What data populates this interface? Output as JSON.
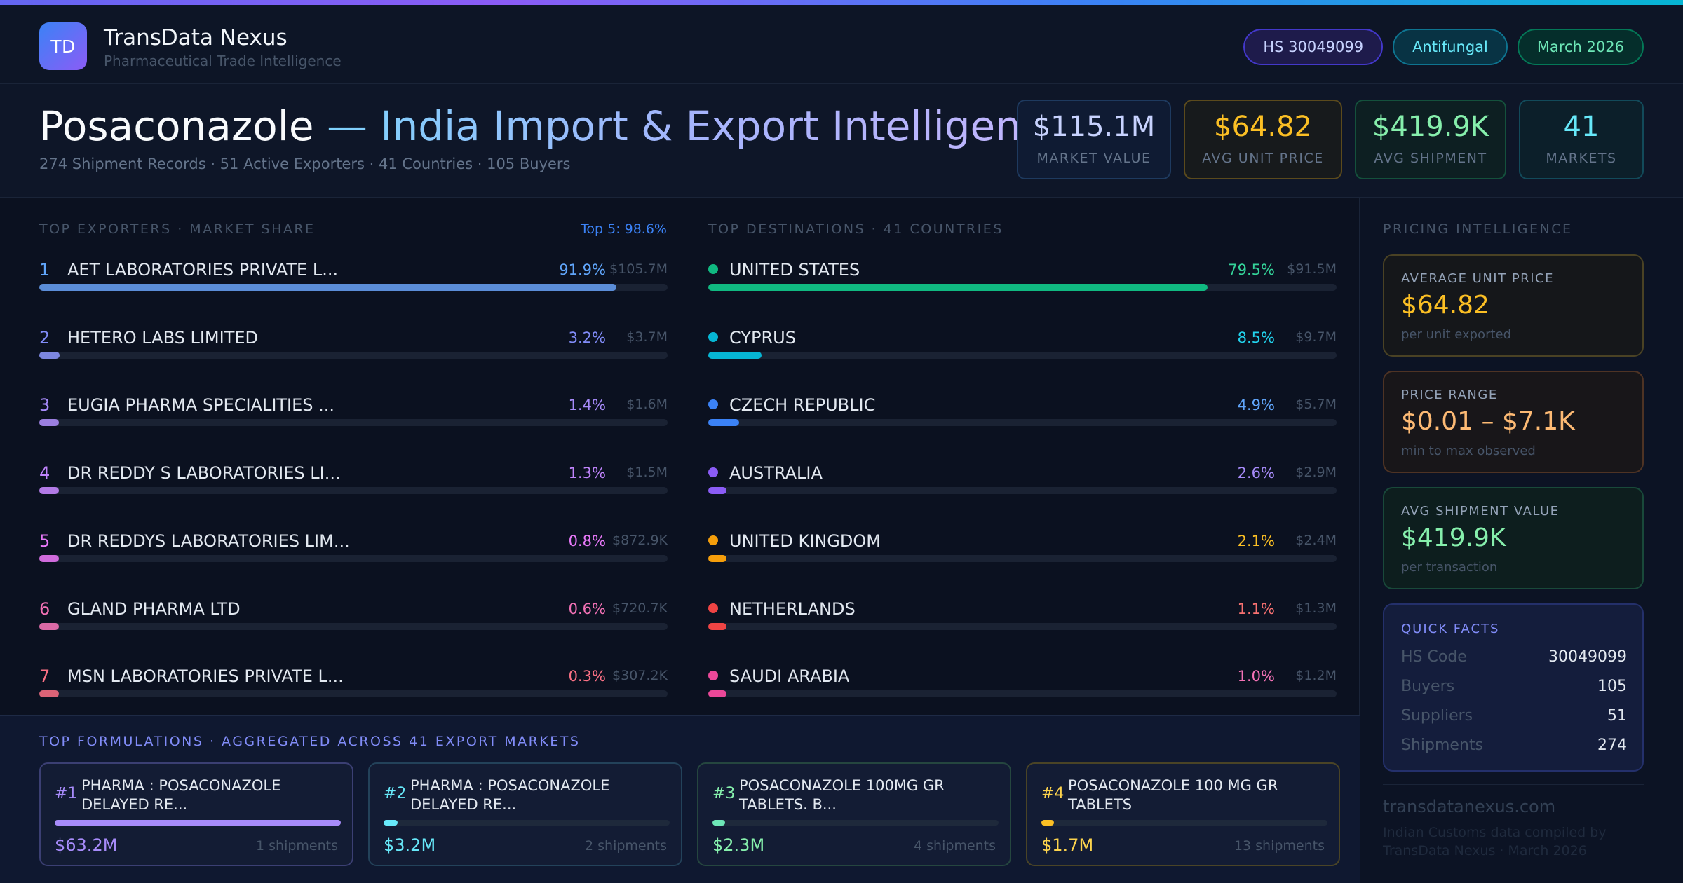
{
  "brand": {
    "logo_text": "TD",
    "name": "TransData Nexus",
    "subtitle": "Pharmaceutical Trade Intelligence"
  },
  "tags": {
    "hs": "HS 30049099",
    "category": "Antifungal",
    "period": "March 2026"
  },
  "hero": {
    "product": "Posaconazole",
    "title_rest": " — India Import & Export Intelligence",
    "subtitle": "274 Shipment Records · 51 Active Exporters · 41 Countries · 105 Buyers"
  },
  "kpis": [
    {
      "value": "$115.1M",
      "label": "MARKET VALUE"
    },
    {
      "value": "$64.82",
      "label": "AVG UNIT PRICE"
    },
    {
      "value": "$419.9K",
      "label": "AVG SHIPMENT"
    },
    {
      "value": "41",
      "label": "MARKETS"
    }
  ],
  "exporters": {
    "title": "TOP EXPORTERS · MARKET SHARE",
    "top5_label": "Top 5: 98.6%",
    "items": [
      {
        "rank": "1",
        "name": "AET LABORATORIES PRIVATE L...",
        "pct": "91.9%",
        "value": "$105.7M",
        "share": 91.9,
        "color": "#60a5fa",
        "fill": "#5b8dd8"
      },
      {
        "rank": "2",
        "name": "HETERO LABS LIMITED",
        "pct": "3.2%",
        "value": "$3.7M",
        "share": 3.2,
        "color": "#818cf8",
        "fill": "#7c86e0"
      },
      {
        "rank": "3",
        "name": "EUGIA PHARMA SPECIALITIES ...",
        "pct": "1.4%",
        "value": "$1.6M",
        "share": 1.4,
        "color": "#a78bfa",
        "fill": "#9b7fe0"
      },
      {
        "rank": "4",
        "name": "DR REDDY S LABORATORIES LI...",
        "pct": "1.3%",
        "value": "$1.5M",
        "share": 1.3,
        "color": "#c084fc",
        "fill": "#b27ae6"
      },
      {
        "rank": "5",
        "name": "DR REDDYS LABORATORIES LIM...",
        "pct": "0.8%",
        "value": "$872.9K",
        "share": 0.8,
        "color": "#e879f9",
        "fill": "#d06bdc"
      },
      {
        "rank": "6",
        "name": "GLAND PHARMA LTD",
        "pct": "0.6%",
        "value": "$720.7K",
        "share": 0.6,
        "color": "#f472b6",
        "fill": "#db6aa6"
      },
      {
        "rank": "7",
        "name": "MSN LABORATORIES PRIVATE L...",
        "pct": "0.3%",
        "value": "$307.2K",
        "share": 0.3,
        "color": "#fb7185",
        "fill": "#dc6377"
      }
    ]
  },
  "destinations": {
    "title": "TOP DESTINATIONS · 41 COUNTRIES",
    "items": [
      {
        "name": "UNITED STATES",
        "pct": "79.5%",
        "value": "$91.5M",
        "share": 79.5,
        "color": "#34d399",
        "fill": "#10b981"
      },
      {
        "name": "CYPRUS",
        "pct": "8.5%",
        "value": "$9.7M",
        "share": 8.5,
        "color": "#22d3ee",
        "fill": "#06b6d4"
      },
      {
        "name": "CZECH REPUBLIC",
        "pct": "4.9%",
        "value": "$5.7M",
        "share": 4.9,
        "color": "#60a5fa",
        "fill": "#3b82f6"
      },
      {
        "name": "AUSTRALIA",
        "pct": "2.6%",
        "value": "$2.9M",
        "share": 2.6,
        "color": "#a78bfa",
        "fill": "#8b5cf6"
      },
      {
        "name": "UNITED KINGDOM",
        "pct": "2.1%",
        "value": "$2.4M",
        "share": 2.1,
        "color": "#fbbf24",
        "fill": "#f59e0b"
      },
      {
        "name": "NETHERLANDS",
        "pct": "1.1%",
        "value": "$1.3M",
        "share": 1.1,
        "color": "#f87171",
        "fill": "#ef4444"
      },
      {
        "name": "SAUDI ARABIA",
        "pct": "1.0%",
        "value": "$1.2M",
        "share": 1.0,
        "color": "#f472b6",
        "fill": "#ec4899"
      }
    ]
  },
  "formulations": {
    "title": "TOP FORMULATIONS · AGGREGATED ACROSS 41 EXPORT MARKETS",
    "items": [
      {
        "num": "#1",
        "name": "PHARMA : POSACONAZOLE DELAYED RE...",
        "value": "$63.2M",
        "shipments": "1 shipments",
        "share": 100,
        "color": "#a78bfa",
        "border": "#3b3f73",
        "fill": "#a78bfa"
      },
      {
        "num": "#2",
        "name": "PHARMA : POSACONAZOLE DELAYED RE...",
        "value": "$3.2M",
        "shipments": "2 shipments",
        "share": 5,
        "color": "#67e8f9",
        "border": "#23425a",
        "fill": "#67e8f9"
      },
      {
        "num": "#3",
        "name": "POSACONAZOLE 100MG GR TABLETS. B...",
        "value": "$2.3M",
        "shipments": "4 shipments",
        "share": 3.6,
        "color": "#86efac",
        "border": "#25463f",
        "fill": "#6ee7b7"
      },
      {
        "num": "#4",
        "name": "POSACONAZOLE 100 MG GR TABLETS",
        "value": "$1.7M",
        "shipments": "13 shipments",
        "share": 2.7,
        "color": "#fcd34d",
        "border": "#4a4426",
        "fill": "#fbbf24"
      }
    ]
  },
  "pricing": {
    "title": "PRICING INTELLIGENCE",
    "cards": [
      {
        "label": "AVERAGE UNIT PRICE",
        "value": "$64.82",
        "sub": "per unit exported",
        "color": "#fbbf24",
        "border": "#4a4224",
        "bg": "#15171a"
      },
      {
        "label": "PRICE RANGE",
        "value": "$0.01 – $7.1K",
        "sub": "min to max observed",
        "color": "#fdba74",
        "border": "#4e3324",
        "bg": "#181619"
      },
      {
        "label": "AVG SHIPMENT VALUE",
        "value": "$419.9K",
        "sub": "per transaction",
        "color": "#86efac",
        "border": "#19493a",
        "bg": "#0d1e1e"
      }
    ],
    "quick_facts": {
      "title": "QUICK FACTS",
      "rows": [
        {
          "key": "HS Code",
          "value": "30049099"
        },
        {
          "key": "Buyers",
          "value": "105"
        },
        {
          "key": "Suppliers",
          "value": "51"
        },
        {
          "key": "Shipments",
          "value": "274"
        }
      ]
    },
    "site": "transdatanexus.com",
    "site_note": "Indian Customs data compiled by TransData Nexus · March 2026"
  }
}
